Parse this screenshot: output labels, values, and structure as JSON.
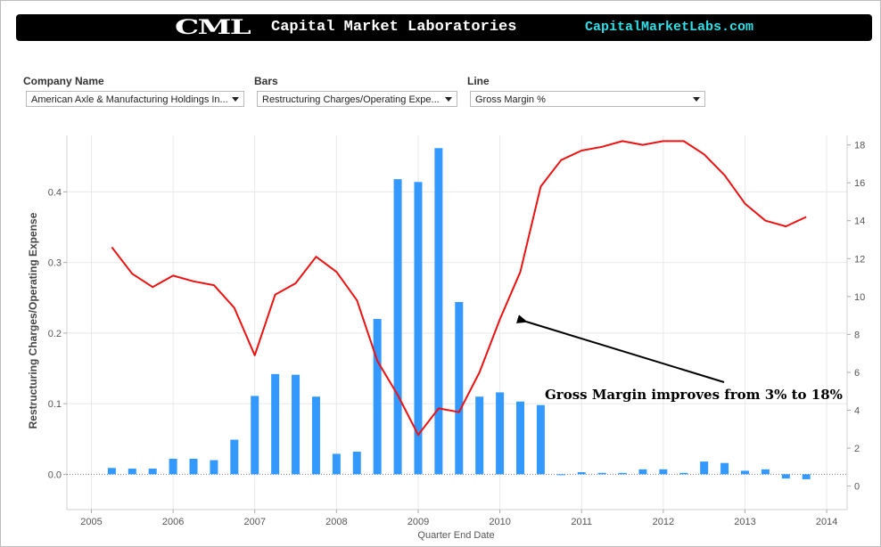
{
  "header": {
    "logo_text": "CML",
    "brand_name": "Capital Market Laboratories",
    "url": "CapitalMarketLabs.com"
  },
  "filters": {
    "company": {
      "label": "Company Name",
      "value": "American Axle & Manufacturing Holdings In..."
    },
    "bars": {
      "label": "Bars",
      "value": "Restructuring Charges/Operating Expe..."
    },
    "line": {
      "label": "Line",
      "value": "Gross Margin %"
    }
  },
  "colors": {
    "bars": "#3399ff",
    "line": "#ee1111",
    "header_bg": "#000000",
    "url": "#2ee0e8"
  },
  "chart_data": {
    "type": "bar",
    "title": "",
    "xlabel": "Quarter End Date",
    "ylabel": "Restructuring Charges/Operating Expense",
    "x_ticks": [
      "2005",
      "2006",
      "2007",
      "2008",
      "2009",
      "2010",
      "2011",
      "2012",
      "2013",
      "2014"
    ],
    "y_ticks_left": [
      "0.0",
      "0.1",
      "0.2",
      "0.3",
      "0.4"
    ],
    "y_ticks_right": [
      "0",
      "2",
      "4",
      "6",
      "8",
      "10",
      "12",
      "14",
      "16",
      "18"
    ],
    "ylim_left": [
      -0.05,
      0.48
    ],
    "ylim_right": [
      -1.24,
      18.5
    ],
    "xlim": [
      2004.7,
      2014.25
    ],
    "grid": true,
    "x": [
      2005.25,
      2005.5,
      2005.75,
      2006.0,
      2006.25,
      2006.5,
      2006.75,
      2007.0,
      2007.25,
      2007.5,
      2007.75,
      2008.0,
      2008.25,
      2008.5,
      2008.75,
      2009.0,
      2009.25,
      2009.5,
      2009.75,
      2010.0,
      2010.25,
      2010.5,
      2010.75,
      2011.0,
      2011.25,
      2011.5,
      2011.75,
      2012.0,
      2012.25,
      2012.5,
      2012.75,
      2013.0,
      2013.25,
      2013.5,
      2013.75
    ],
    "series": [
      {
        "name": "Restructuring Charges/Operating Expense",
        "axis": "left",
        "type": "bar",
        "values": [
          0.009,
          0.008,
          0.008,
          0.022,
          0.022,
          0.02,
          0.049,
          0.111,
          0.142,
          0.141,
          0.11,
          0.029,
          0.032,
          0.22,
          0.418,
          0.414,
          0.462,
          0.244,
          0.11,
          0.116,
          0.103,
          0.098,
          0.0,
          0.003,
          0.002,
          0.002,
          0.007,
          0.007,
          0.002,
          0.018,
          0.016,
          0.005,
          0.007,
          -0.006,
          -0.007
        ]
      },
      {
        "name": "Gross Margin %",
        "axis": "right",
        "type": "line",
        "values": [
          12.6,
          11.2,
          10.5,
          11.1,
          10.8,
          10.6,
          9.4,
          6.9,
          10.1,
          10.7,
          12.1,
          11.3,
          9.8,
          6.6,
          4.8,
          2.7,
          4.1,
          3.9,
          6.0,
          8.8,
          11.3,
          15.8,
          17.2,
          17.7,
          17.9,
          18.2,
          18.0,
          18.2,
          18.2,
          17.5,
          16.4,
          14.9,
          14.0,
          13.7,
          14.2
        ]
      }
    ],
    "annotations": [
      {
        "text": "Gross Margin improves from 3% to 18%"
      }
    ]
  }
}
